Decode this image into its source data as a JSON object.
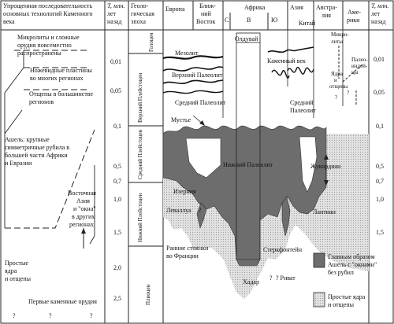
{
  "header": {
    "left_title": [
      "Упрощенная последовательность",
      "основных технологий Каменного",
      "века"
    ],
    "time_label": [
      "T, млн.",
      "лет",
      "назад"
    ],
    "epoch_label": [
      "Геоло-",
      "гическая",
      "эпоха"
    ],
    "europe": "Европа",
    "near_east": [
      "Ближ-",
      "ний",
      "Восток"
    ],
    "africa": "Африка",
    "africa_c": "С",
    "africa_v": "В",
    "africa_yu": "Ю",
    "asia": "Азия",
    "china": "Китай",
    "australia": [
      "Австра-",
      "лия"
    ],
    "america": [
      "Аме-",
      "рики"
    ],
    "time_label_right": [
      "T, млн.",
      "лет",
      "назад"
    ]
  },
  "left_column": {
    "t1": [
      "Микролиты и сложные",
      "орудия повсеместно",
      "распространены"
    ],
    "t2": [
      "Ножевидные пластины",
      "во многих регионах"
    ],
    "t3": [
      "Отщепы в большинстве",
      "регионов"
    ],
    "t4": [
      "Ашель: крупные",
      "симметричные рубила в",
      "большей части Африки",
      "и Евразии"
    ],
    "t5": [
      "Восточная",
      "Азия",
      "и \"окна\"",
      "в других",
      "регионах"
    ],
    "t6": [
      "Простые",
      "ядра",
      "и отщепы"
    ],
    "t7": "Первые каменные орудия",
    "qmarks": [
      "?",
      "?",
      "?"
    ]
  },
  "time_ticks": [
    "0,01",
    "0,05",
    "0,1",
    "0,5",
    "0,7",
    "1,0",
    "1,5",
    "2,0",
    "2,5"
  ],
  "epochs": [
    "Голоцен",
    "Верхний Плейстоцен",
    "Средний Плейстоцен",
    "Нижний Плейстоцен",
    "Плиоцен"
  ],
  "labels": {
    "mesolit": "Мезолит",
    "upper_paleo": "Верхний Палеолит",
    "middle_paleo": "Средний Палеолит",
    "mustye": "Мустье",
    "lower_paleo": "Нижний Палеолит",
    "olduvai": "Олдувай",
    "stone_age": "Каменный век",
    "middle_paleo_asia": [
      "Средний",
      "Палеолит"
    ],
    "zhukordian": "Жукордиан",
    "lantian": "Лантиан",
    "izernia": "Изерния",
    "levallua": "Леваллуа",
    "early_sites": [
      "Ранние стоянки",
      "во Франции"
    ],
    "sterkfontein": "Стеркфонтейн",
    "hadar": "Хадар",
    "rivat": "? Риват",
    "microlites_au": [
      "Микро-",
      "литы"
    ],
    "cores_au": [
      "Ядра",
      "и",
      "отщепы"
    ],
    "paleoind": [
      "Палео-",
      "индей-",
      "цы"
    ]
  },
  "legend": {
    "dark": [
      "Главным образом",
      "Ашель с \"окнами\"",
      "без рубил"
    ],
    "light": [
      "Простые ядра",
      "и отщепы"
    ]
  }
}
